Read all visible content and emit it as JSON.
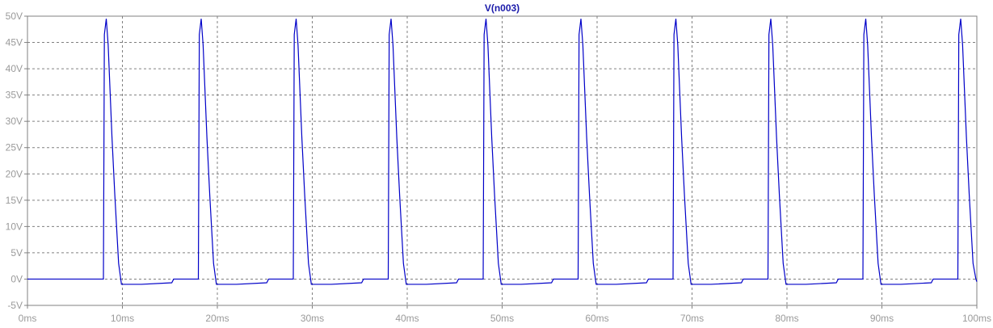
{
  "colors": {
    "trace": "#0000c8",
    "grid": "#808080",
    "frame": "#808080",
    "tick_label": "#9a9a9a",
    "title": "#1a1aaa",
    "background": "#ffffff"
  },
  "chart_data": {
    "type": "line",
    "title": "V(n003)",
    "xlabel": "",
    "ylabel": "",
    "xlim": [
      0,
      100
    ],
    "ylim": [
      -5,
      50
    ],
    "x_unit": "ms",
    "y_unit": "V",
    "x_ticks": [
      "0ms",
      "10ms",
      "20ms",
      "30ms",
      "40ms",
      "50ms",
      "60ms",
      "70ms",
      "80ms",
      "90ms",
      "100ms"
    ],
    "y_ticks": [
      "-5V",
      "0V",
      "5V",
      "10V",
      "15V",
      "20V",
      "25V",
      "30V",
      "35V",
      "40V",
      "45V",
      "50V"
    ],
    "x_tick_values": [
      0,
      10,
      20,
      30,
      40,
      50,
      60,
      70,
      80,
      90,
      100
    ],
    "y_tick_values": [
      -5,
      0,
      5,
      10,
      15,
      20,
      25,
      30,
      35,
      40,
      45,
      50
    ],
    "grid": true,
    "series": [
      {
        "name": "V(n003)",
        "x": [
          0,
          8.0,
          8.1,
          8.3,
          8.5,
          8.9,
          9.2,
          9.6,
          9.9,
          10.0,
          12.0,
          15.2,
          15.4,
          18.0,
          18.1,
          18.3,
          18.5,
          18.9,
          19.2,
          19.6,
          19.9,
          20.0,
          22.0,
          25.2,
          25.4,
          28.0,
          28.1,
          28.3,
          28.5,
          28.9,
          29.2,
          29.6,
          29.9,
          30.0,
          32.0,
          35.2,
          35.4,
          38.0,
          38.1,
          38.3,
          38.5,
          38.9,
          39.2,
          39.6,
          39.9,
          40.0,
          42.0,
          45.2,
          45.4,
          48.0,
          48.1,
          48.3,
          48.5,
          48.9,
          49.2,
          49.6,
          49.9,
          50.0,
          52.0,
          55.2,
          55.4,
          58.0,
          58.1,
          58.3,
          58.5,
          58.9,
          59.2,
          59.6,
          59.9,
          60.0,
          62.0,
          65.2,
          65.4,
          68.0,
          68.1,
          68.3,
          68.5,
          68.9,
          69.2,
          69.6,
          69.9,
          70.0,
          72.0,
          75.2,
          75.4,
          78.0,
          78.1,
          78.3,
          78.5,
          78.9,
          79.2,
          79.6,
          79.9,
          80.0,
          82.0,
          85.2,
          85.4,
          88.0,
          88.1,
          88.3,
          88.5,
          88.9,
          89.2,
          89.6,
          89.9,
          90.0,
          92.0,
          95.2,
          95.4,
          98.0,
          98.1,
          98.3,
          98.5,
          98.9,
          99.2,
          99.6,
          99.9,
          100.0
        ],
        "y": [
          0,
          0,
          46.5,
          49.5,
          44.5,
          27,
          16,
          3,
          -1,
          -1,
          -1,
          -0.7,
          0,
          0,
          46.5,
          49.5,
          44.5,
          27,
          16,
          3,
          -1,
          -1,
          -1,
          -0.7,
          0,
          0,
          46.5,
          49.5,
          44.5,
          27,
          16,
          3,
          -1,
          -1,
          -1,
          -0.7,
          0,
          0,
          46.5,
          49.5,
          44.5,
          27,
          16,
          3,
          -1,
          -1,
          -1,
          -0.7,
          0,
          0,
          46.5,
          49.5,
          44.5,
          27,
          16,
          3,
          -1,
          -1,
          -1,
          -0.7,
          0,
          0,
          46.5,
          49.5,
          44.5,
          27,
          16,
          3,
          -1,
          -1,
          -1,
          -0.7,
          0,
          0,
          46.5,
          49.5,
          44.5,
          27,
          16,
          3,
          -1,
          -1,
          -1,
          -0.7,
          0,
          0,
          46.5,
          49.5,
          44.5,
          27,
          16,
          3,
          -1,
          -1,
          -1,
          -0.7,
          0,
          0,
          46.5,
          49.5,
          44.5,
          27,
          16,
          3,
          -1,
          -1,
          -1,
          -0.7,
          0,
          0,
          46.5,
          49.5,
          44.5,
          27,
          16,
          3,
          0,
          -0.5
        ]
      }
    ]
  }
}
